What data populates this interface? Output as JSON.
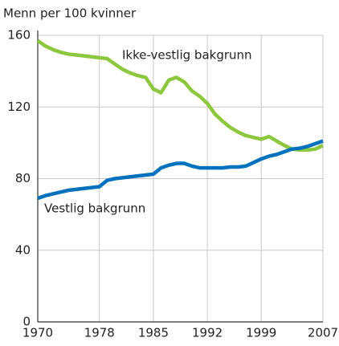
{
  "chart_data": {
    "type": "line",
    "y_label": "Menn per 100 kvinner",
    "x": [
      1970,
      1971,
      1972,
      1973,
      1974,
      1975,
      1976,
      1977,
      1978,
      1979,
      1980,
      1981,
      1982,
      1983,
      1984,
      1985,
      1986,
      1987,
      1988,
      1989,
      1990,
      1991,
      1992,
      1993,
      1994,
      1995,
      1996,
      1997,
      1998,
      1999,
      2000,
      2001,
      2002,
      2003,
      2004,
      2005,
      2006,
      2007
    ],
    "series": [
      {
        "name": "Ikke-vestlig bakgrunn",
        "color": "#8dc63f",
        "values": [
          157,
          154,
          152,
          150.5,
          149.5,
          149,
          148.5,
          148,
          147.5,
          147,
          144,
          141,
          139,
          137.5,
          136.5,
          130,
          128,
          135,
          136.5,
          134,
          129,
          126,
          122,
          116,
          112,
          108.5,
          106,
          104,
          103,
          102,
          103.5,
          101,
          98.5,
          96.5,
          96,
          96,
          96.5,
          98.5
        ]
      },
      {
        "name": "Vestlig bakgrunn",
        "color": "#0071bc",
        "values": [
          69,
          70.5,
          71.5,
          72.5,
          73.5,
          74,
          74.5,
          75,
          75.5,
          79,
          80,
          80.5,
          81,
          81.5,
          82,
          82.5,
          86,
          87.5,
          88.5,
          88.5,
          87,
          86,
          86,
          86,
          86,
          86.5,
          86.5,
          87,
          89,
          91,
          92.5,
          93.5,
          95,
          96.5,
          97,
          98,
          99.5,
          101
        ]
      }
    ],
    "xlim": [
      1970,
      2007
    ],
    "xticks": [
      1970,
      1978,
      1985,
      1992,
      1999,
      2007
    ],
    "ylim": [
      0,
      160
    ],
    "yticks": [
      0,
      40,
      80,
      120,
      160
    ],
    "grid": true
  }
}
